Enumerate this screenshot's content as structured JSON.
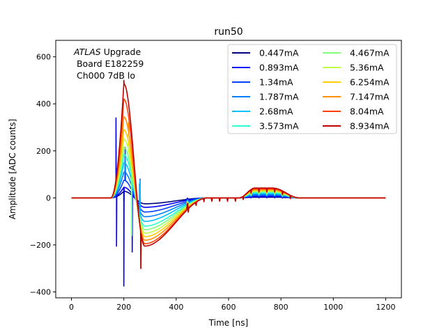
{
  "chart_data": {
    "type": "line",
    "title": "run50",
    "xlabel": "Time [ns]",
    "ylabel": "Amplitude [ADC counts]",
    "xlim": [
      -60,
      1260
    ],
    "ylim": [
      -425,
      670
    ],
    "xticks": [
      0,
      200,
      400,
      600,
      800,
      1000,
      1200
    ],
    "yticks": [
      -400,
      -200,
      0,
      200,
      400,
      600
    ],
    "grid": false,
    "legend": {
      "placement": "upper-right",
      "columns": 2
    },
    "annotation": {
      "lines": [
        "ATLAS Upgrade",
        " Board E182259",
        " Ch000 7dB lo"
      ],
      "italic_word": "ATLAS"
    },
    "features": {
      "pulse_start_ns": 150,
      "peak_ns": 200,
      "undershoot_ns": 280,
      "recovery_ns": 520,
      "bump_center_ns": 730,
      "bump_end_ns": 870,
      "end_ns": 1200
    },
    "series": [
      {
        "name": "0.447mA",
        "color": "#00007f",
        "peak": 28,
        "undershoot": -25,
        "bump": 3,
        "glitch": [
          [
            170,
            20
          ],
          [
            200,
            -15
          ]
        ]
      },
      {
        "name": "0.893mA",
        "color": "#0000ff",
        "peak": 45,
        "undershoot": -40,
        "bump": 6,
        "glitch": [
          [
            170,
            340
          ],
          [
            172,
            -205
          ],
          [
            200,
            -375
          ],
          [
            232,
            -230
          ]
        ]
      },
      {
        "name": "1.34mA",
        "color": "#0040ff",
        "peak": 75,
        "undershoot": -60,
        "bump": 10,
        "glitch": [
          [
            205,
            215
          ],
          [
            262,
            80
          ]
        ]
      },
      {
        "name": "1.787mA",
        "color": "#0080ff",
        "peak": 110,
        "undershoot": -80,
        "bump": 14,
        "glitch": [
          [
            205,
            180
          ],
          [
            260,
            60
          ]
        ]
      },
      {
        "name": "2.68mA",
        "color": "#00bfff",
        "peak": 150,
        "undershoot": -100,
        "bump": 18,
        "glitch": [
          [
            210,
            140
          ],
          [
            262,
            75
          ]
        ]
      },
      {
        "name": "3.573mA",
        "color": "#2bffcf",
        "peak": 185,
        "undershoot": -120,
        "bump": 22,
        "glitch": [
          [
            212,
            160
          ],
          [
            230,
            -140
          ]
        ]
      },
      {
        "name": "4.467mA",
        "color": "#7fff7f",
        "peak": 215,
        "undershoot": -135,
        "bump": 26,
        "glitch": [
          [
            212,
            190
          ],
          [
            230,
            -160
          ]
        ]
      },
      {
        "name": "5.36mA",
        "color": "#bfff3f",
        "peak": 250,
        "undershoot": -150,
        "bump": 29,
        "glitch": [
          [
            215,
            230
          ]
        ]
      },
      {
        "name": "6.254mA",
        "color": "#ffcf00",
        "peak": 290,
        "undershoot": -165,
        "bump": 32,
        "glitch": [
          [
            215,
            270
          ]
        ]
      },
      {
        "name": "7.147mA",
        "color": "#ff8f00",
        "peak": 345,
        "undershoot": -180,
        "bump": 35,
        "glitch": [
          [
            218,
            320
          ]
        ]
      },
      {
        "name": "8.04mA",
        "color": "#ff4000",
        "peak": 420,
        "undershoot": -195,
        "bump": 38,
        "glitch": [
          [
            265,
            -300
          ]
        ]
      },
      {
        "name": "8.934mA",
        "color": "#bf0000",
        "peak": 485,
        "undershoot": -205,
        "bump": 42,
        "glitch": [
          [
            200,
            500
          ],
          [
            265,
            -300
          ]
        ]
      }
    ]
  }
}
